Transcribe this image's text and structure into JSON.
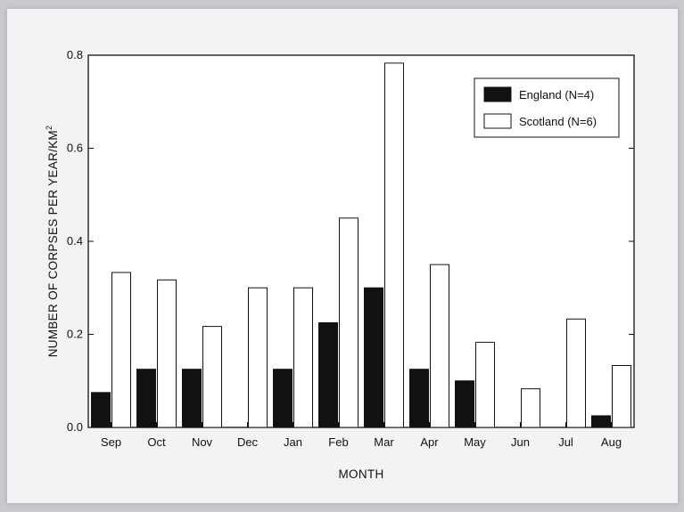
{
  "chart_data": {
    "type": "bar",
    "title": "",
    "xlabel": "MONTH",
    "ylabel_main": "NUMBER OF CORPSES PER YEAR/KM",
    "ylabel_sup": "2",
    "ylim": [
      0,
      0.8
    ],
    "yticks": [
      "0.0",
      "0.2",
      "0.4",
      "0.6",
      "0.8"
    ],
    "categories": [
      "Sep",
      "Oct",
      "Nov",
      "Dec",
      "Jan",
      "Feb",
      "Mar",
      "Apr",
      "May",
      "Jun",
      "Jul",
      "Aug"
    ],
    "series": [
      {
        "name": "England (N=4)",
        "color": "#111111",
        "values": [
          0.075,
          0.125,
          0.125,
          0.0,
          0.125,
          0.225,
          0.3,
          0.125,
          0.1,
          0.0,
          0.0,
          0.025
        ]
      },
      {
        "name": "Scotland (N=6)",
        "color": "#ffffff",
        "values": [
          0.333,
          0.317,
          0.217,
          0.3,
          0.3,
          0.45,
          0.783,
          0.35,
          0.183,
          0.083,
          0.233,
          0.133
        ]
      }
    ],
    "legend_position": "top-right",
    "grid": false
  }
}
